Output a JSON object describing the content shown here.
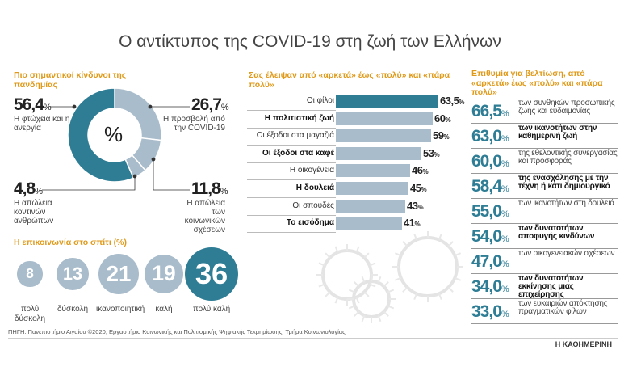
{
  "title": "Ο αντίκτυπος της COVID-19 στη ζωή των Ελλήνων",
  "colors": {
    "accent": "#2e7d95",
    "light": "#a9bccb",
    "heading": "#e09a1a"
  },
  "chart_data": [
    {
      "type": "pie",
      "title": "Πιο σημαντικοί κίνδυνοι της πανδημίας",
      "center_label": "%",
      "slices": [
        {
          "label": "Η προσβολή από την COVID-19",
          "value": 26.7,
          "display": "26,7"
        },
        {
          "label": "Η απώλεια των κοινωνικών σχέσεων",
          "value": 11.8,
          "display": "11,8"
        },
        {
          "label": "Η απώλεια κοντινών ανθρώπων",
          "value": 4.8,
          "display": "4,8"
        },
        {
          "label": "Η φτώχεια και η ανεργία",
          "value": 56.4,
          "display": "56,4"
        }
      ]
    },
    {
      "type": "bar",
      "title": "Σας έλειψαν από «αρκετά» έως «πολύ» και «πάρα πολύ»",
      "categories": [
        "Οι φίλοι",
        "Η πολιτιστική ζωή",
        "Οι έξοδοι στα μαγαζιά",
        "Οι έξοδοι στα καφέ",
        "Η οικογένεια",
        "Η δουλειά",
        "Οι σπουδές",
        "Το εισόδημα"
      ],
      "values": [
        63.5,
        60,
        59,
        53,
        46,
        45,
        43,
        41
      ],
      "display": [
        "63,5",
        "60",
        "59",
        "53",
        "46",
        "45",
        "43",
        "41"
      ],
      "bold": [
        false,
        true,
        false,
        true,
        false,
        true,
        false,
        true
      ]
    },
    {
      "type": "table",
      "title": "Επιθυμία για βελτίωση, από «αρκετά» έως «πολύ» και «πάρα πολύ»",
      "rows": [
        {
          "value": "66,5",
          "text": "των συνθηκών προσωπικής ζωής και ευδαιμονίας",
          "bold": false
        },
        {
          "value": "63,0",
          "text": "των ικανοτήτων στην καθημερινή ζωή",
          "bold": true
        },
        {
          "value": "60,0",
          "text": "της εθελοντικής συνεργασίας και προσφοράς",
          "bold": false
        },
        {
          "value": "58,4",
          "text": "της ενασχόλησης με την τέχνη ή κάτι δημιουργικό",
          "bold": true
        },
        {
          "value": "55,0",
          "text": "των ικανοτήτων στη δουλειά",
          "bold": false
        },
        {
          "value": "54,0",
          "text": "των δυνατοτήτων αποφυγής κινδύνων",
          "bold": true
        },
        {
          "value": "47,0",
          "text": "των οικογενειακών σχέσεων",
          "bold": false
        },
        {
          "value": "34,0",
          "text": "των δυνατοτήτων εκκίνησης μιας επιχείρησης",
          "bold": true
        },
        {
          "value": "33,0",
          "text": "των ευκαιριών απόκτησης πραγματικών φίλων",
          "bold": false
        }
      ]
    },
    {
      "type": "bubble",
      "title": "Η επικοινωνία στο σπίτι (%)",
      "categories": [
        "πολύ δύσκολη",
        "δύσκολη",
        "ικανοποιητική",
        "καλή",
        "πολύ καλή"
      ],
      "values": [
        8,
        13,
        21,
        19,
        36
      ]
    }
  ],
  "pct_sign": "%",
  "source": "ΠΗΓΗ: Πανεπιστήμιο Αιγαίου ©2020, Εργαστήριο Κοινωνικής και Πολιτισμικής Ψηφιακής Τεκμηρίωσης, Τμήμα Κοινωνιολογίας",
  "brand": "Η ΚΑΘΗΜΕΡΙΝΗ"
}
